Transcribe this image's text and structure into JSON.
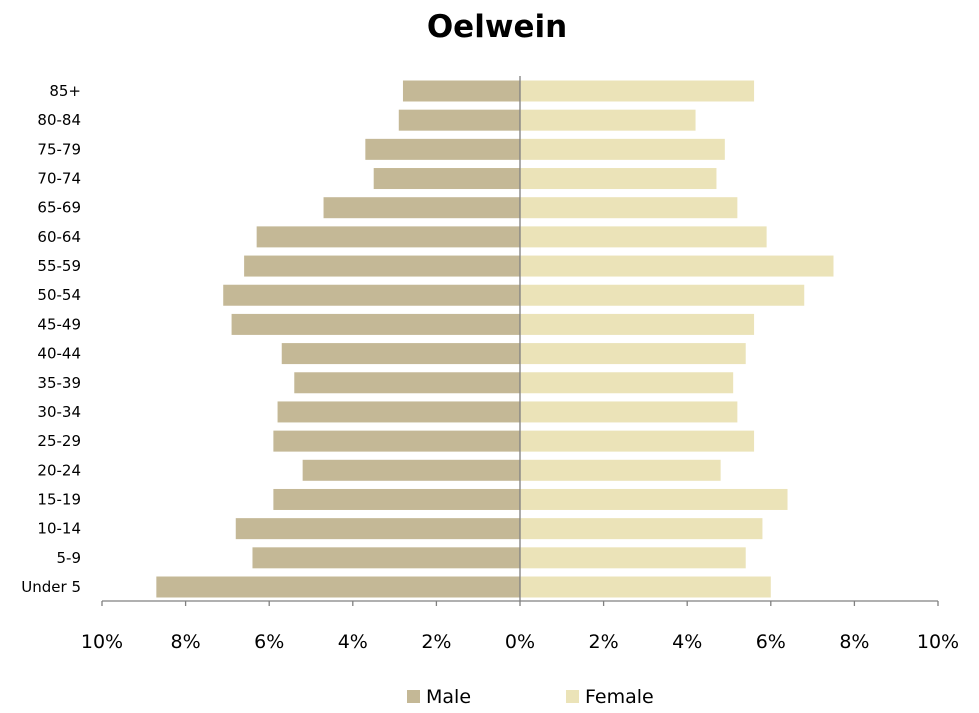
{
  "chart_data": {
    "type": "bar",
    "orientation": "horizontal",
    "layout": "population-pyramid",
    "title": "Oelwein",
    "categories": [
      "Under 5",
      "5-9",
      "10-14",
      "15-19",
      "20-24",
      "25-29",
      "30-34",
      "35-39",
      "40-44",
      "45-49",
      "50-54",
      "55-59",
      "60-64",
      "65-69",
      "70-74",
      "75-79",
      "80-84",
      "85+"
    ],
    "series": [
      {
        "name": "Male",
        "color": "#c4b896",
        "values": [
          8.7,
          6.4,
          6.8,
          5.9,
          5.2,
          5.9,
          5.8,
          5.4,
          5.7,
          6.9,
          7.1,
          6.6,
          6.3,
          4.7,
          3.5,
          3.7,
          2.9,
          2.8
        ]
      },
      {
        "name": "Female",
        "color": "#ebe3b8",
        "values": [
          6.0,
          5.4,
          5.8,
          6.4,
          4.8,
          5.6,
          5.2,
          5.1,
          5.4,
          5.6,
          6.8,
          7.5,
          5.9,
          5.2,
          4.7,
          4.9,
          4.2,
          5.6
        ]
      }
    ],
    "xlim": [
      -10,
      10
    ],
    "x_ticks": [
      -10,
      -8,
      -6,
      -4,
      -2,
      0,
      2,
      4,
      6,
      8,
      10
    ],
    "x_tick_labels": [
      "10%",
      "8%",
      "6%",
      "4%",
      "2%",
      "0%",
      "2%",
      "4%",
      "6%",
      "8%",
      "10%"
    ],
    "xlabel": "",
    "ylabel": "",
    "grid": false,
    "legend_position": "bottom"
  }
}
